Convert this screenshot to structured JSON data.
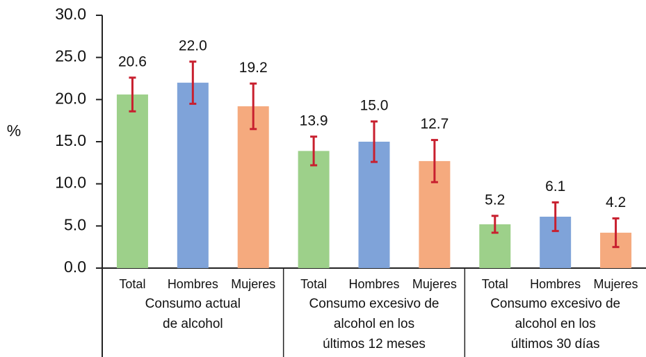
{
  "chart_data": {
    "type": "bar",
    "y_label": "%",
    "categories": [
      [
        "Consumo actual",
        "de alcohol"
      ],
      [
        "Consumo excesivo de",
        "alcohol en los",
        "últimos 12 meses"
      ],
      [
        "Consumo excesivo de",
        "alcohol en los",
        "últimos 30 días"
      ]
    ],
    "series": [
      {
        "name": "Total",
        "color": "#9dd08a",
        "values": [
          20.6,
          13.9,
          5.2
        ],
        "value_labels": [
          "20.6",
          "13.9",
          "5.2"
        ],
        "errors": [
          2.0,
          1.7,
          1.0
        ]
      },
      {
        "name": "Hombres",
        "color": "#7fa3d9",
        "values": [
          22.0,
          15.0,
          6.1
        ],
        "value_labels": [
          "22.0",
          "15.0",
          "6.1"
        ],
        "errors": [
          2.5,
          2.4,
          1.7
        ]
      },
      {
        "name": "Mujeres",
        "color": "#f5aa7e",
        "values": [
          19.2,
          12.7,
          4.2
        ],
        "value_labels": [
          "19.2",
          "12.7",
          "4.2"
        ],
        "errors": [
          2.7,
          2.5,
          1.7
        ]
      }
    ],
    "error_color": "#c8202f",
    "ylim": [
      0,
      30
    ],
    "yticks": [
      {
        "value": 0,
        "label": "0.0"
      },
      {
        "value": 5,
        "label": "5.0"
      },
      {
        "value": 10,
        "label": "10.0"
      },
      {
        "value": 15,
        "label": "15.0"
      },
      {
        "value": 20,
        "label": "20.0"
      },
      {
        "value": 25,
        "label": "25.0"
      },
      {
        "value": 30,
        "label": "30.0"
      }
    ]
  }
}
